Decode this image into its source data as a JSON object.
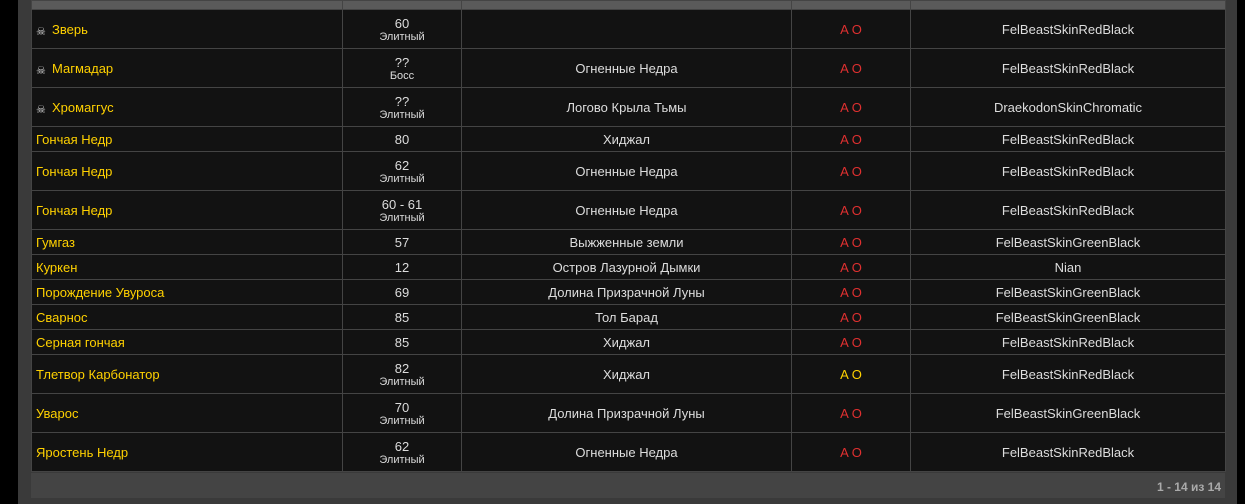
{
  "rows": [
    {
      "name": "Зверь",
      "boss_icon": true,
      "level": "60",
      "class": "Элитный",
      "zone": "",
      "react": "A O",
      "react_color": "#e03030",
      "skin": "FelBeastSkinRedBlack"
    },
    {
      "name": "Магмадар",
      "boss_icon": true,
      "level": "??",
      "class": "Босс",
      "zone": "Огненные Недра",
      "react": "A O",
      "react_color": "#e03030",
      "skin": "FelBeastSkinRedBlack"
    },
    {
      "name": "Хромаггус",
      "boss_icon": true,
      "level": "??",
      "class": "Элитный",
      "zone": "Логово Крыла Тьмы",
      "react": "A O",
      "react_color": "#e03030",
      "skin": "DraekodonSkinChromatic"
    },
    {
      "name": "Гончая Недр",
      "boss_icon": false,
      "level": "80",
      "class": "",
      "zone": "Хиджал",
      "react": "A O",
      "react_color": "#e03030",
      "skin": "FelBeastSkinRedBlack"
    },
    {
      "name": "Гончая Недр",
      "boss_icon": false,
      "level": "62",
      "class": "Элитный",
      "zone": "Огненные Недра",
      "react": "A O",
      "react_color": "#e03030",
      "skin": "FelBeastSkinRedBlack"
    },
    {
      "name": "Гончая Недр",
      "boss_icon": false,
      "level": "60 - 61",
      "class": "Элитный",
      "zone": "Огненные Недра",
      "react": "A O",
      "react_color": "#e03030",
      "skin": "FelBeastSkinRedBlack"
    },
    {
      "name": "Гумгаз",
      "boss_icon": false,
      "level": "57",
      "class": "",
      "zone": "Выжженные земли",
      "react": "A O",
      "react_color": "#e03030",
      "skin": "FelBeastSkinGreenBlack"
    },
    {
      "name": "Куркен",
      "boss_icon": false,
      "level": "12",
      "class": "",
      "zone": "Остров Лазурной Дымки",
      "react": "A O",
      "react_color": "#e03030",
      "skin": "Nian"
    },
    {
      "name": "Порождение Увуроса",
      "boss_icon": false,
      "level": "69",
      "class": "",
      "zone": "Долина Призрачной Луны",
      "react": "A O",
      "react_color": "#e03030",
      "skin": "FelBeastSkinGreenBlack"
    },
    {
      "name": "Сварнос",
      "boss_icon": false,
      "level": "85",
      "class": "",
      "zone": "Тол Барад",
      "react": "A O",
      "react_color": "#e03030",
      "skin": "FelBeastSkinGreenBlack"
    },
    {
      "name": "Серная гончая",
      "boss_icon": false,
      "level": "85",
      "class": "",
      "zone": "Хиджал",
      "react": "A O",
      "react_color": "#e03030",
      "skin": "FelBeastSkinRedBlack"
    },
    {
      "name": "Тлетвор Карбонатор",
      "boss_icon": false,
      "level": "82",
      "class": "Элитный",
      "zone": "Хиджал",
      "react": "A O",
      "react_color": "#ffd100",
      "skin": "FelBeastSkinRedBlack"
    },
    {
      "name": "Уварос",
      "boss_icon": false,
      "level": "70",
      "class": "Элитный",
      "zone": "Долина Призрачной Луны",
      "react": "A O",
      "react_color": "#e03030",
      "skin": "FelBeastSkinGreenBlack"
    },
    {
      "name": "Яростень Недр",
      "boss_icon": false,
      "level": "62",
      "class": "Элитный",
      "zone": "Огненные Недра",
      "react": "A O",
      "react_color": "#e03030",
      "skin": "FelBeastSkinRedBlack"
    }
  ],
  "pagination": "1 - 14 из 14"
}
